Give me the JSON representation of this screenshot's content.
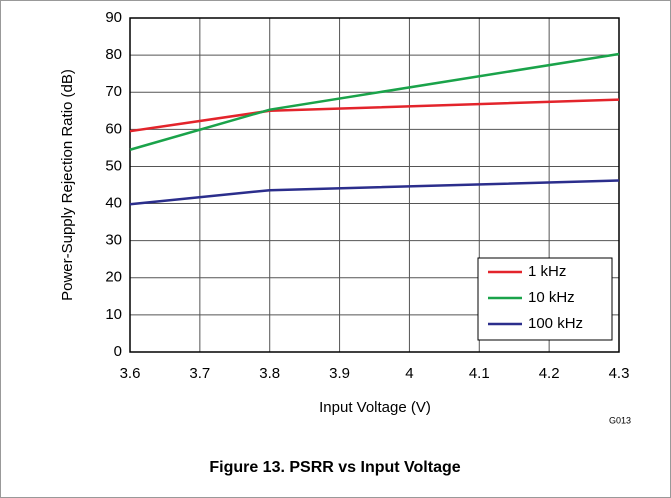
{
  "chart_data": {
    "type": "line",
    "caption": "Figure 13. PSRR vs Input Voltage",
    "figure_id": "G013",
    "x_label": "Input Voltage (V)",
    "y_label": "Power-Supply Rejection Ratio (dB)",
    "x": [
      3.6,
      3.8,
      4.3
    ],
    "series": [
      {
        "name": "1 kHz",
        "color": "#e3242b",
        "values": [
          59.5,
          65,
          68
        ]
      },
      {
        "name": "10 kHz",
        "color": "#1aa34a",
        "values": [
          54.5,
          65.3,
          80.3
        ]
      },
      {
        "name": "100 kHz",
        "color": "#2b2e8c",
        "values": [
          39.8,
          43.6,
          46.2
        ]
      }
    ],
    "xlim": [
      3.6,
      4.3
    ],
    "xticks": [
      3.6,
      3.7,
      3.8,
      3.9,
      4,
      4.1,
      4.2,
      4.3
    ],
    "ylim": [
      0,
      90
    ],
    "yticks": [
      0,
      10,
      20,
      30,
      40,
      50,
      60,
      70,
      80,
      90
    ],
    "grid": true,
    "legend": "lower-right"
  }
}
